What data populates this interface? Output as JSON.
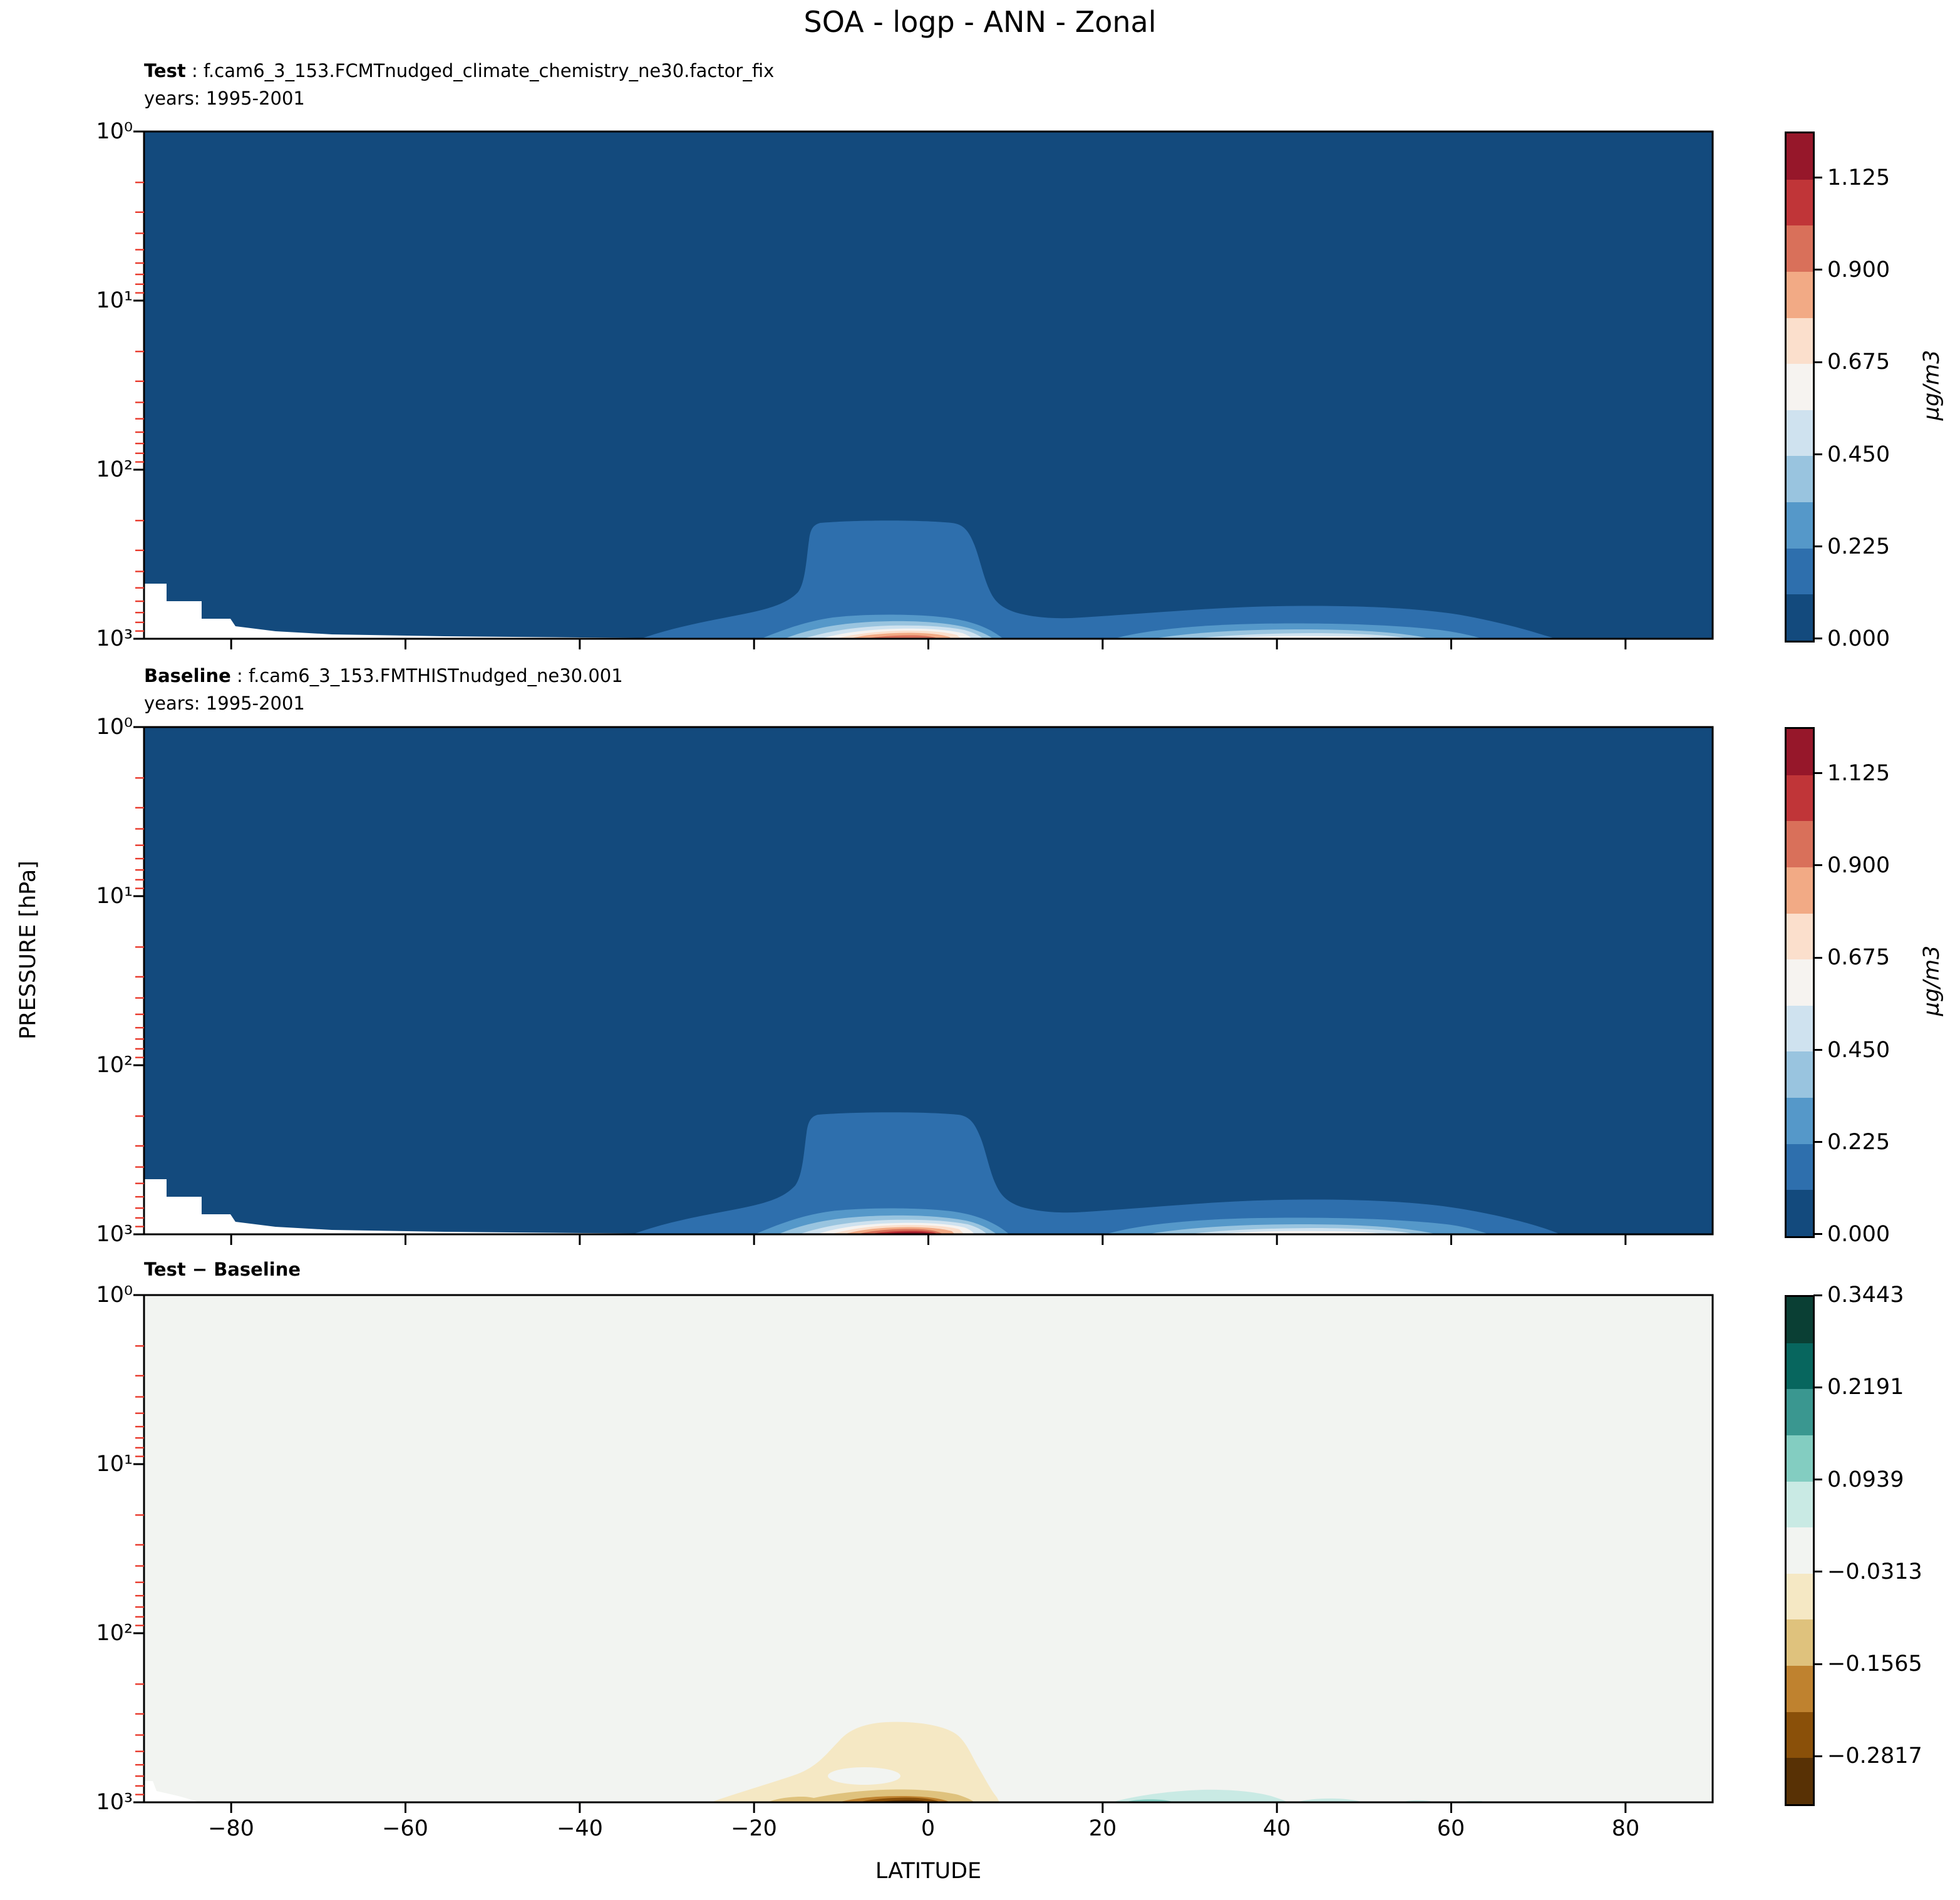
{
  "title": "SOA - logp - ANN - Zonal",
  "panels": [
    {
      "label_bold": "Test",
      "label_rest": " : f.cam6_3_153.FCMTnudged_climate_chemistry_ne30.factor_fix",
      "years": "years: 1995-2001"
    },
    {
      "label_bold": "Baseline",
      "label_rest": " : f.cam6_3_153.FMTHISTnudged_ne30.001",
      "years": "years: 1995-2001"
    },
    {
      "label_bold": "Test − Baseline",
      "label_rest": "",
      "years": ""
    }
  ],
  "axes": {
    "xlabel": "LATITUDE",
    "ylabel": "PRESSURE [hPa]",
    "x_ticks": [
      "−80",
      "−60",
      "−40",
      "−20",
      "0",
      "20",
      "40",
      "60",
      "80"
    ],
    "y_ticks": [
      "10⁰",
      "10¹",
      "10²",
      "10³"
    ],
    "minor_tick_color": "#e8392b"
  },
  "colorbars": {
    "concentration": {
      "unit": "µg/m3",
      "ticks": [
        "0.000",
        "0.225",
        "0.450",
        "0.675",
        "0.900",
        "1.125"
      ],
      "bands": [
        "#134a7d",
        "#2e6fad",
        "#5598c9",
        "#99c4df",
        "#cfe2ef",
        "#f6f3f0",
        "#fbdfcc",
        "#f2aa85",
        "#d9705a",
        "#c03538",
        "#96172a"
      ]
    },
    "difference": {
      "unit": "",
      "ticks": [
        "−0.2817",
        "−0.1565",
        "−0.0313",
        "0.0939",
        "0.2191",
        "0.3443"
      ],
      "bands": [
        "#583105",
        "#8a5009",
        "#bf822f",
        "#dfc27d",
        "#f5e8c4",
        "#f2f4f1",
        "#c9eae4",
        "#83cdc1",
        "#3a9790",
        "#07665e",
        "#0a3f34"
      ]
    },
    "mask_color": "#ffffff"
  },
  "chart_data": [
    {
      "type": "heatmap",
      "subtype": "filled_contour",
      "title": "Test: f.cam6_3_153.FCMTnudged_climate_chemistry_ne30.factor_fix, years 1995-2001",
      "variable": "SOA",
      "season": "ANN",
      "units": "µg/m3",
      "xlabel": "LATITUDE",
      "ylabel": "PRESSURE [hPa]",
      "x_range": [
        -90,
        90
      ],
      "y_range_hPa": [
        1,
        1000
      ],
      "y_scale": "log10, inverted (1 hPa top, 1000 hPa bottom)",
      "colormap": "RdBu_r (blue = low, red = high)",
      "contour_levels": [
        0.0,
        0.1125,
        0.225,
        0.3375,
        0.45,
        0.5625,
        0.675,
        0.7875,
        0.9,
        1.0125,
        1.125,
        1.2375
      ],
      "features": [
        {
          "desc": "bulk of domain in lowest band 0.000-0.1125 µg/m3 (deep blue)"
        },
        {
          "desc": "tropical near-surface maximum ~0.95-1.01 µg/m3 (salmon core) centered near lat -3, ~950-1000 hPa"
        },
        {
          "desc": "equatorial plume of 0.11-0.23 µg/m3 reaching up to ~250 hPa between lat -13 and +3"
        },
        {
          "desc": "NH mid-latitude surface band reaching ~0.56-0.68 µg/m3 between lat 25 and 60 below ~800 hPa"
        },
        {
          "desc": "white masked terrain wedge near South Pole (lat -90 to -60) below ~500 hPa"
        }
      ]
    },
    {
      "type": "heatmap",
      "subtype": "filled_contour",
      "title": "Baseline: f.cam6_3_153.FMTHISTnudged_ne30.001, years 1995-2001",
      "variable": "SOA",
      "season": "ANN",
      "units": "µg/m3",
      "xlabel": "LATITUDE",
      "ylabel": "PRESSURE [hPa]",
      "x_range": [
        -90,
        90
      ],
      "y_range_hPa": [
        1,
        1000
      ],
      "y_scale": "log10, inverted (1 hPa top, 1000 hPa bottom)",
      "colormap": "RdBu_r (blue = low, red = high)",
      "contour_levels": [
        0.0,
        0.1125,
        0.225,
        0.3375,
        0.45,
        0.5625,
        0.675,
        0.7875,
        0.9,
        1.0125,
        1.125,
        1.2375
      ],
      "features": [
        {
          "desc": "same structure as Test but stronger tropical maximum"
        },
        {
          "desc": "tropical near-surface core exceeds 1.125 µg/m3 (dark red) near lat -3, ~980 hPa"
        },
        {
          "desc": "equatorial plume of 0.11-0.23 µg/m3 reaching ~230 hPa between lat -14 and +5"
        },
        {
          "desc": "NH mid-latitude surface band ~0.45-0.68 µg/m3 between lat 20 and 65"
        },
        {
          "desc": "white masked terrain wedge near South Pole below ~500 hPa"
        }
      ]
    },
    {
      "type": "heatmap",
      "subtype": "filled_contour",
      "title": "Test − Baseline",
      "variable": "SOA difference",
      "season": "ANN",
      "units": "µg/m3",
      "xlabel": "LATITUDE",
      "ylabel": "PRESSURE [hPa]",
      "x_range": [
        -90,
        90
      ],
      "y_range_hPa": [
        1,
        1000
      ],
      "y_scale": "log10, inverted (1 hPa top, 1000 hPa bottom)",
      "colormap": "BrBG (brown = negative, teal = positive)",
      "contour_levels": [
        -0.3443,
        -0.2817,
        -0.2191,
        -0.1565,
        -0.0939,
        -0.0313,
        0.0313,
        0.0939,
        0.1565,
        0.2191,
        0.2817,
        0.3443
      ],
      "features": [
        {
          "desc": "near-zero difference (−0.0313 to +0.0313, off-white) over most of domain"
        },
        {
          "desc": "negative tropical blob (tan/brown) lat -25 to +8 below ~500 hPa, dark-brown core ~ −0.29 to −0.34 near lat -3 at surface"
        },
        {
          "desc": "ring/hole of near-zero values inside tan blob near lat -13, ~750 hPa"
        },
        {
          "desc": "weak positive (light teal, +0.03 to +0.16) surface patches near lat 21-40, 43-50, ~52, ~61-64"
        },
        {
          "desc": "tiny white masked wedge at bottom-left (South Pole)"
        }
      ]
    }
  ]
}
